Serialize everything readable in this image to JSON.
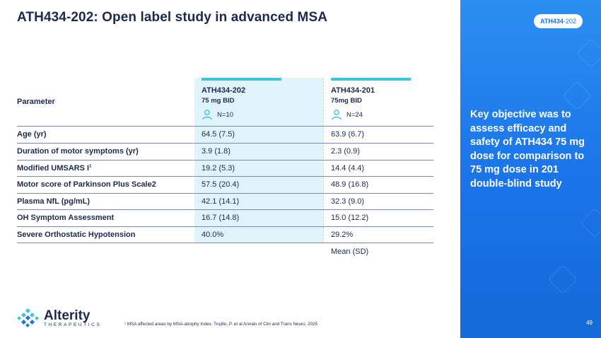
{
  "header": {
    "title": "ATH434-202: Open label study in advanced MSA"
  },
  "panel": {
    "badge_bold": "ATH434",
    "badge_rest": "-202",
    "objective": "Key objective was to assess efficacy and safety of ATH434 75 mg dose for comparison to 75 mg dose in 201 double-blind study",
    "page_number": "49"
  },
  "table": {
    "parameter_header": "Parameter",
    "columns": [
      {
        "title": "ATH434-202",
        "subtitle": "75 mg BID",
        "n": "N=10",
        "icon": "person-icon"
      },
      {
        "title": "ATH434-201",
        "subtitle": "75mg BID",
        "n": "N=24",
        "icon": "person-icon"
      }
    ],
    "rows": [
      {
        "parameter": "Age (yr)",
        "sup": "",
        "col1": "64.5 (7.5)",
        "col2": "63.9 (6.7)"
      },
      {
        "parameter": "Duration of motor symptoms (yr)",
        "sup": "",
        "col1": "3.9 (1.8)",
        "col2": "2.3 (0.9)"
      },
      {
        "parameter": "Modified UMSARS I",
        "sup": "1",
        "col1": "19.2 (5.3)",
        "col2": "14.4 (4.4)"
      },
      {
        "parameter": "Motor score of Parkinson Plus Scale2",
        "sup": "",
        "col1": "57.5 (20.4)",
        "col2": "48.9 (16.8)"
      },
      {
        "parameter": "Plasma NfL (pg/mL)",
        "sup": "",
        "col1": "42.1 (14.1)",
        "col2": "32.3 (9.0)"
      },
      {
        "parameter": "OH Symptom Assessment",
        "sup": "",
        "col1": "16.7 (14.8)",
        "col2": "15.0 (12.2)"
      },
      {
        "parameter": "Severe Orthostatic Hypotension",
        "sup": "",
        "col1": "40.0%",
        "col2": "29.2%"
      }
    ],
    "note": "Mean (SD)"
  },
  "footer": {
    "logo_name": "Alterity",
    "logo_sub": "THERAPEUTICS",
    "footnote": "¹ MSA affected areas by MSA-atrophy Index. Trujillo, P. et al Annals of Clin and Trans Neuro, 2025"
  },
  "colors": {
    "navy": "#1d2a4d",
    "accent_cyan": "#3cc4e0",
    "panel_blue": "#1a73e8",
    "shade": "#e1f3fa"
  }
}
